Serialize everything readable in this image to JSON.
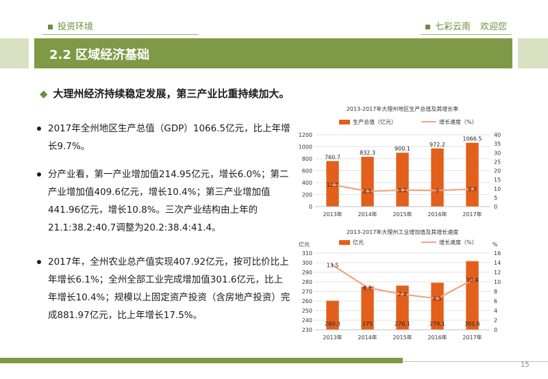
{
  "header": {
    "section": "投资环境",
    "brand": "七彩云南",
    "welcome": "欢迎您"
  },
  "title": "2.2 区域经济基础",
  "headline": "大理州经济持续稳定发展，第三产业比重持续加大。",
  "bullets": [
    "2017年全州地区生产总值（GDP）1066.5亿元，比上年增长9.7%。",
    "分产业看，第一产业增加值214.95亿元，增长6.0%；第二产业增加值409.6亿元，增长10.4%；第三产业增加值441.96亿元，增长10.8%。三次产业结构由上年的21.1:38.2:40.7调整为20.2:38.4:41.4。",
    "2017年，全州农业总产值实现407.92亿元，按可比价比上年增长6.1%；全州全部工业完成增加值301.6亿元，比上年增长10.4%；规模以上固定资产投资（含房地产投资）完成881.97亿元，比上年增长17.5%。"
  ],
  "page_number": "15",
  "colors": {
    "bar": "#e2601b",
    "line": "#f2a27e",
    "accent": "#7f9a46"
  },
  "chart_data": [
    {
      "type": "bar",
      "title": "2013-2017年大理州地区生产总值及其增长率",
      "categories": [
        "2013年",
        "2014年",
        "2015年",
        "2016年",
        "2017年"
      ],
      "series": [
        {
          "name": "生产总值（亿元）",
          "type": "bar",
          "axis": "left",
          "values": [
            760.7,
            832.3,
            900.1,
            972.2,
            1066.5
          ],
          "labels": [
            "760.7",
            "832.3",
            "900.1",
            "972.2",
            "1066.5"
          ]
        },
        {
          "name": "增长速度（%）",
          "type": "line",
          "axis": "right",
          "values": [
            12.2,
            8.5,
            9.2,
            9,
            9.7
          ],
          "labels": [
            "12.2",
            "8.5",
            "9.2",
            "9",
            "9.7"
          ]
        }
      ],
      "ylim": [
        0,
        1200
      ],
      "yticks": [
        0,
        200,
        400,
        600,
        800,
        1000,
        1200
      ],
      "y2lim": [
        0,
        40
      ],
      "y2ticks": [
        0,
        5,
        10,
        15,
        20,
        25,
        30,
        35,
        40
      ],
      "ylabel": "",
      "y2label": "",
      "legend": "top",
      "grid": true
    },
    {
      "type": "bar",
      "title": "2013-2017年大理州工业增加值及其增长速度",
      "categories": [
        "2013年",
        "2014年",
        "2015年",
        "2016年",
        "2017年"
      ],
      "series": [
        {
          "name": "亿元",
          "type": "bar",
          "axis": "left",
          "values": [
            260.3,
            275,
            276.1,
            279.1,
            301.6
          ],
          "labels": [
            "260.3",
            "275",
            "276.1",
            "279.1",
            "301.6"
          ]
        },
        {
          "name": "增长速度（%）",
          "type": "line",
          "axis": "right",
          "values": [
            13.5,
            8.8,
            7.4,
            6.5,
            10.4
          ],
          "labels": [
            "13.5",
            "8.8",
            "7.4",
            "6.5",
            "10.4"
          ]
        }
      ],
      "ylim": [
        230,
        310
      ],
      "yticks": [
        230,
        240,
        250,
        260,
        270,
        280,
        290,
        300,
        310
      ],
      "y2lim": [
        0,
        16
      ],
      "y2ticks": [
        0,
        2,
        4,
        6,
        8,
        10,
        12,
        14,
        16
      ],
      "ylabel": "亿元",
      "y2label": "%",
      "legend": "top",
      "grid": true
    }
  ]
}
